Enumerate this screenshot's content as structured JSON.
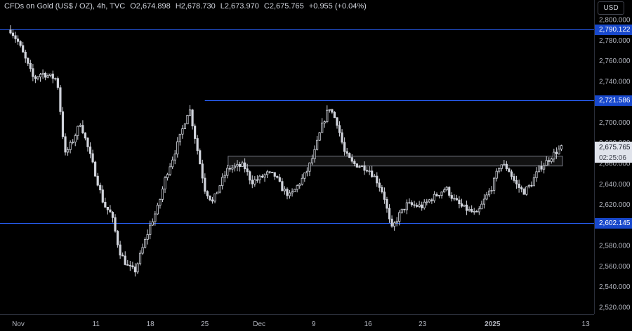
{
  "header": {
    "symbol": "CFDs on Gold (US$ / OZ), 4h, TVC",
    "open": "O2,674.898",
    "high": "H2,678.730",
    "low": "L2,673.970",
    "close": "C2,675.765",
    "change": "+0.955 (+0.04%)"
  },
  "currency_button": "USD",
  "colors": {
    "background": "#000000",
    "candle": "#d1d4dc",
    "level_line": "#2962ff",
    "label_bg": "#1848cc",
    "axis_text": "#b2b5be"
  },
  "price_labels": {
    "current_price": "2,675.765",
    "countdown": "02:25:06",
    "levels": [
      "2,790.122",
      "2,721.586",
      "2,602.145"
    ]
  },
  "chart_data": {
    "type": "candlestick",
    "y_ticks": [
      "2,800.000",
      "2,780.000",
      "2,760.000",
      "2,740.000",
      "2,720.000",
      "2,700.000",
      "2,680.000",
      "2,660.000",
      "2,640.000",
      "2,620.000",
      "2,600.000",
      "2,580.000",
      "2,560.000",
      "2,540.000",
      "2,520.000"
    ],
    "x_ticks": [
      "Nov",
      "11",
      "18",
      "25",
      "Dec",
      "9",
      "16",
      "23",
      "2025",
      "13"
    ],
    "horizontal_levels": [
      2790.122,
      2721.586,
      2602.145
    ],
    "zone": {
      "low": 2657.5,
      "high": 2667,
      "from": "2024-11-28",
      "to": "2025-01-10"
    },
    "ylim": [
      2510,
      2805
    ],
    "path_points": [
      {
        "t": "2024-10-31",
        "p": 2790
      },
      {
        "t": "2024-11-01",
        "p": 2778
      },
      {
        "t": "2024-11-03",
        "p": 2742
      },
      {
        "t": "2024-11-04",
        "p": 2748
      },
      {
        "t": "2024-11-06",
        "p": 2742
      },
      {
        "t": "2024-11-07",
        "p": 2668
      },
      {
        "t": "2024-11-08",
        "p": 2682
      },
      {
        "t": "2024-11-09",
        "p": 2700
      },
      {
        "t": "2024-11-11",
        "p": 2648
      },
      {
        "t": "2024-11-12",
        "p": 2620
      },
      {
        "t": "2024-11-13",
        "p": 2610
      },
      {
        "t": "2024-11-14",
        "p": 2575
      },
      {
        "t": "2024-11-15",
        "p": 2560
      },
      {
        "t": "2024-11-16",
        "p": 2555
      },
      {
        "t": "2024-11-18",
        "p": 2600
      },
      {
        "t": "2024-11-19",
        "p": 2618
      },
      {
        "t": "2024-11-20",
        "p": 2648
      },
      {
        "t": "2024-11-21",
        "p": 2668
      },
      {
        "t": "2024-11-22",
        "p": 2690
      },
      {
        "t": "2024-11-23",
        "p": 2715
      },
      {
        "t": "2024-11-25",
        "p": 2635
      },
      {
        "t": "2024-11-26",
        "p": 2622
      },
      {
        "t": "2024-11-27",
        "p": 2640
      },
      {
        "t": "2024-11-28",
        "p": 2655
      },
      {
        "t": "2024-11-30",
        "p": 2658
      },
      {
        "t": "2024-12-01",
        "p": 2642
      },
      {
        "t": "2024-12-02",
        "p": 2645
      },
      {
        "t": "2024-12-03",
        "p": 2650
      },
      {
        "t": "2024-12-04",
        "p": 2648
      },
      {
        "t": "2024-12-05",
        "p": 2635
      },
      {
        "t": "2024-12-06",
        "p": 2628
      },
      {
        "t": "2024-12-08",
        "p": 2650
      },
      {
        "t": "2024-12-09",
        "p": 2668
      },
      {
        "t": "2024-12-10",
        "p": 2695
      },
      {
        "t": "2024-12-11",
        "p": 2715
      },
      {
        "t": "2024-12-12",
        "p": 2700
      },
      {
        "t": "2024-12-13",
        "p": 2670
      },
      {
        "t": "2024-12-14",
        "p": 2660
      },
      {
        "t": "2024-12-16",
        "p": 2655
      },
      {
        "t": "2024-12-17",
        "p": 2645
      },
      {
        "t": "2024-12-18",
        "p": 2630
      },
      {
        "t": "2024-12-19",
        "p": 2595
      },
      {
        "t": "2024-12-20",
        "p": 2610
      },
      {
        "t": "2024-12-21",
        "p": 2620
      },
      {
        "t": "2024-12-23",
        "p": 2618
      },
      {
        "t": "2024-12-24",
        "p": 2625
      },
      {
        "t": "2024-12-25",
        "p": 2630
      },
      {
        "t": "2024-12-26",
        "p": 2636
      },
      {
        "t": "2024-12-27",
        "p": 2625
      },
      {
        "t": "2024-12-28",
        "p": 2618
      },
      {
        "t": "2024-12-30",
        "p": 2610
      },
      {
        "t": "2024-12-31",
        "p": 2625
      },
      {
        "t": "2025-01-01",
        "p": 2638
      },
      {
        "t": "2025-01-02",
        "p": 2660
      },
      {
        "t": "2025-01-03",
        "p": 2655
      },
      {
        "t": "2025-01-04",
        "p": 2640
      },
      {
        "t": "2025-01-05",
        "p": 2632
      },
      {
        "t": "2025-01-06",
        "p": 2640
      },
      {
        "t": "2025-01-07",
        "p": 2655
      },
      {
        "t": "2025-01-08",
        "p": 2662
      },
      {
        "t": "2025-01-09",
        "p": 2670
      },
      {
        "t": "2025-01-10",
        "p": 2675.765
      }
    ]
  }
}
